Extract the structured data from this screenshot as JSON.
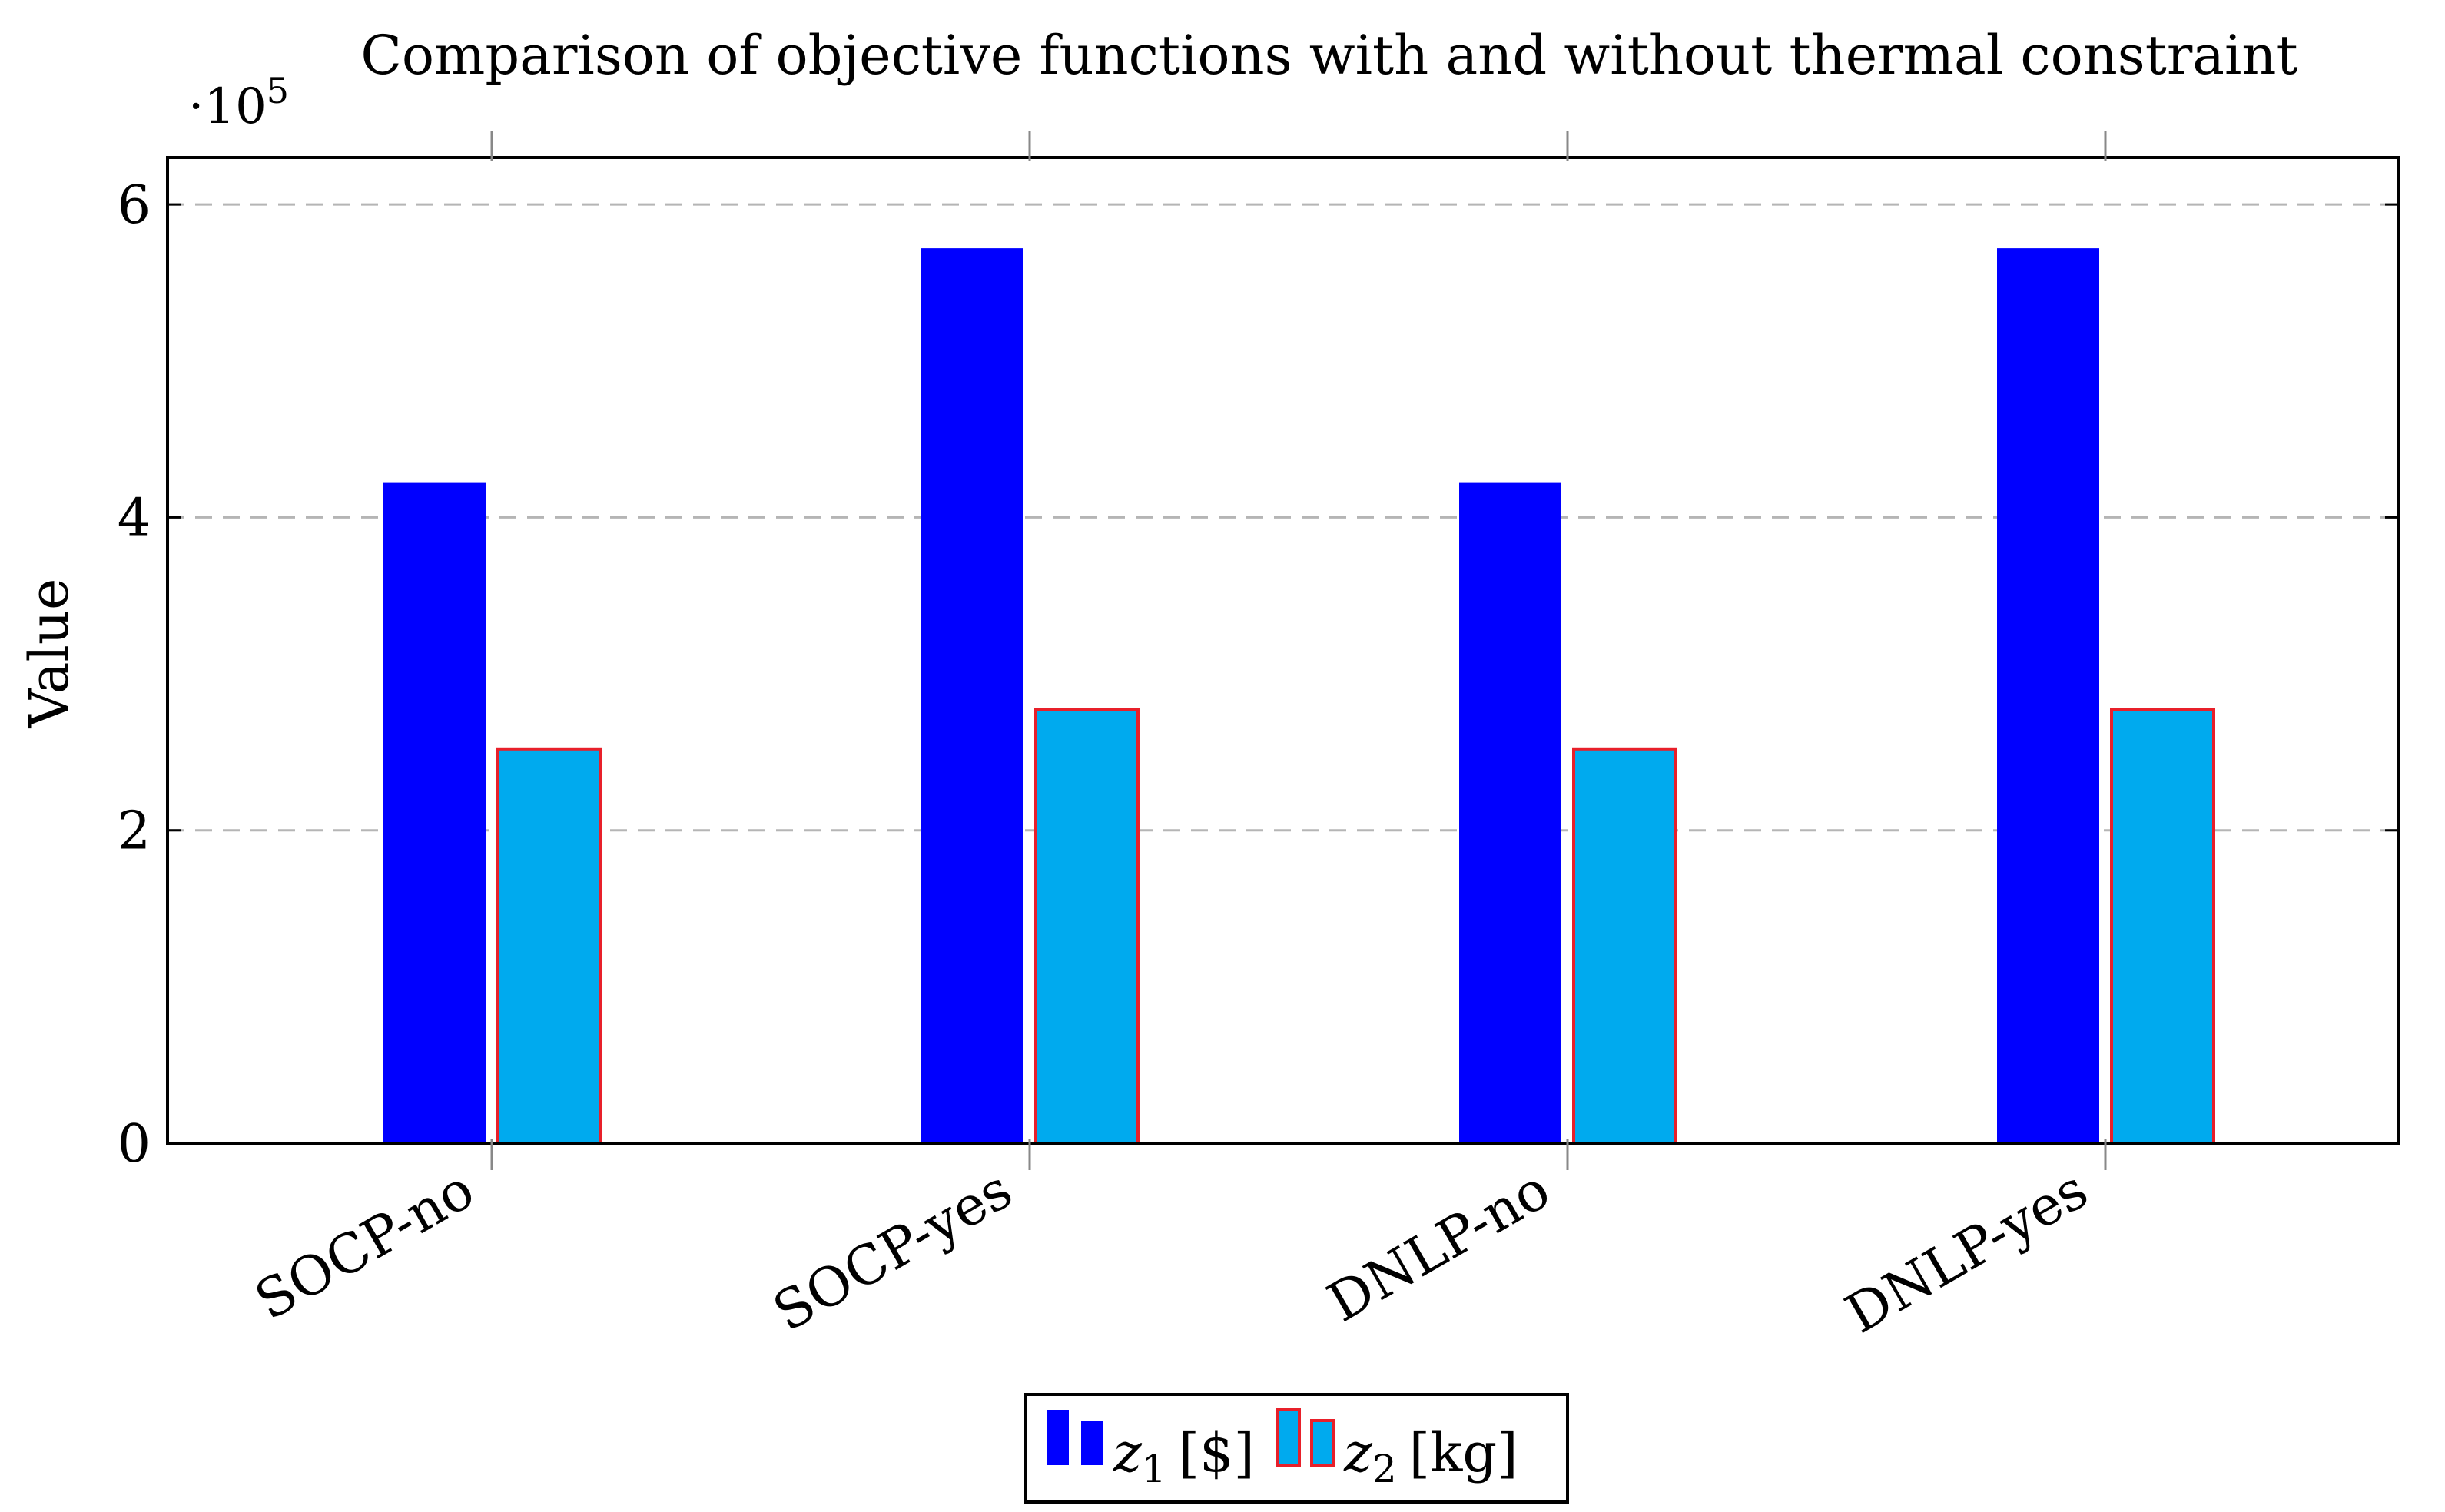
{
  "chart_data": {
    "type": "bar",
    "title": "Comparison of objective functions with and without thermal constraint",
    "ylabel": "Value",
    "xlabel": "",
    "y_multiplier": {
      "base": "·10",
      "exponent": "5"
    },
    "ylim": [
      0,
      6.3
    ],
    "yticks": [
      0,
      2,
      4,
      6
    ],
    "grid": "y-dashed",
    "legend_position": "bottom-center",
    "categories": [
      "SOCP-no",
      "SOCP-yes",
      "DNLP-no",
      "DNLP-yes"
    ],
    "series": [
      {
        "name": "z",
        "subscript": "1",
        "unit": "[$]",
        "values": [
          4.22,
          5.72,
          4.22,
          5.72
        ],
        "fill": "#0000ff",
        "stroke": "#0000ff"
      },
      {
        "name": "z",
        "subscript": "2",
        "unit": "[kg]",
        "values": [
          2.52,
          2.77,
          2.52,
          2.77
        ],
        "fill": "#00aaee",
        "stroke": "#e8202a"
      }
    ]
  }
}
